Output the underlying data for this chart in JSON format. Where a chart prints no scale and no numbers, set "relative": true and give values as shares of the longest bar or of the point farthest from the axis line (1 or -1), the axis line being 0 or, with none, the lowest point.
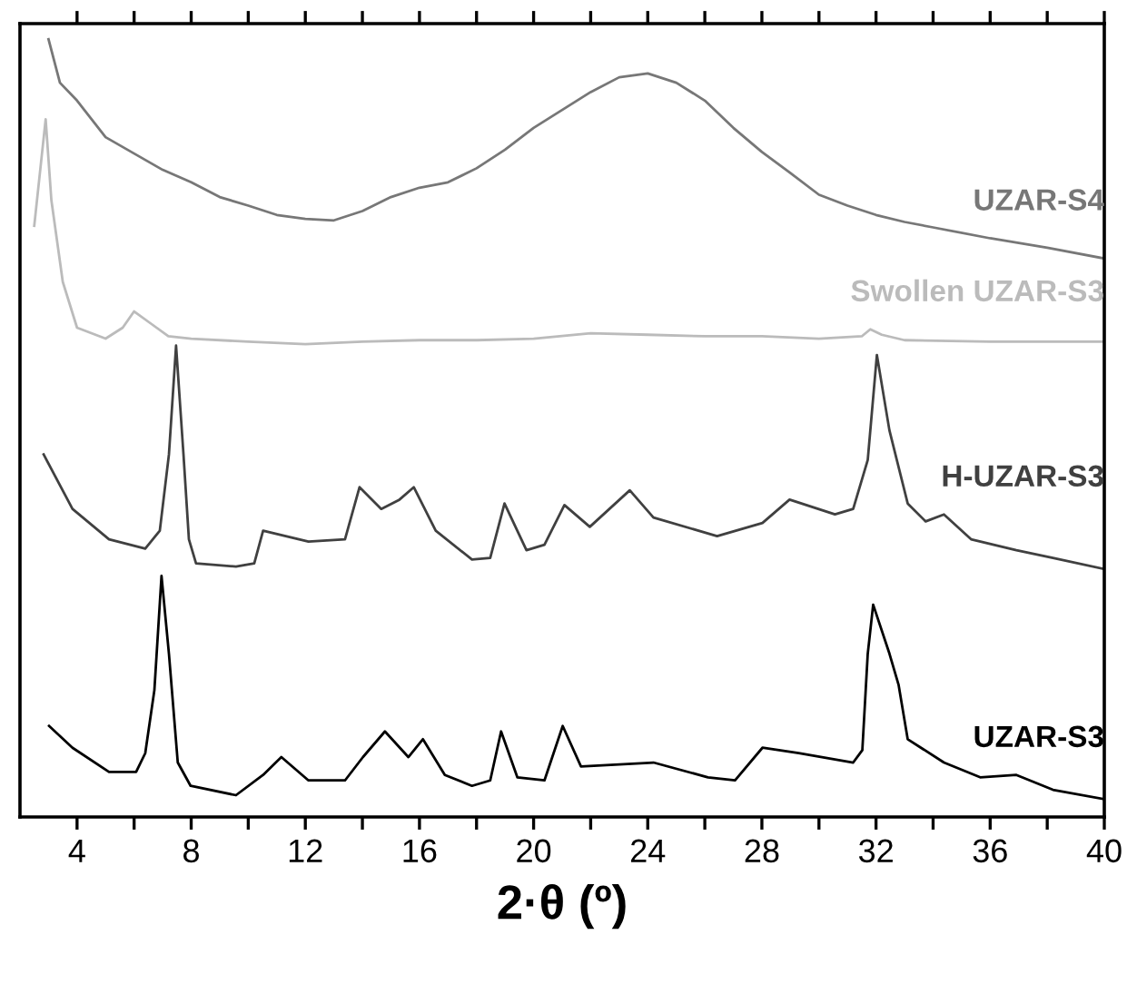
{
  "chart_data": {
    "type": "line",
    "relative": true,
    "xlabel": "2·θ (º)",
    "xlim": [
      2,
      40
    ],
    "xticks": [
      4,
      {
        "value": 6,
        "label": null
      },
      8,
      {
        "value": 10,
        "label": null
      },
      12,
      {
        "value": 14,
        "label": null
      },
      16,
      {
        "value": 18,
        "label": null
      },
      20,
      {
        "value": 22,
        "label": null
      },
      24,
      {
        "value": 26,
        "label": null
      },
      28,
      {
        "value": 30,
        "label": null
      },
      32,
      {
        "value": 34,
        "label": null
      },
      36,
      {
        "value": 38,
        "label": null
      },
      40
    ],
    "grid": false,
    "legend": false,
    "marker": "none",
    "line_style": "solid",
    "series": [
      {
        "name": "UZAR-S4",
        "color": "#777777",
        "x": [
          3.0,
          3.4,
          4,
          5,
          6,
          7,
          8,
          9,
          10,
          11,
          12,
          13,
          14,
          15,
          16,
          17,
          18,
          19,
          20,
          21,
          22,
          23,
          24,
          25,
          26,
          27,
          28,
          29,
          30,
          31,
          32,
          33,
          34,
          36,
          38,
          40
        ],
        "values": [
          1,
          0.944,
          0.921,
          0.874,
          0.853,
          0.832,
          0.816,
          0.797,
          0.786,
          0.774,
          0.769,
          0.767,
          0.779,
          0.797,
          0.809,
          0.816,
          0.834,
          0.858,
          0.886,
          0.909,
          0.932,
          0.951,
          0.956,
          0.944,
          0.921,
          0.886,
          0.855,
          0.828,
          0.8,
          0.786,
          0.774,
          0.765,
          0.758,
          0.744,
          0.732,
          0.718
        ]
      },
      {
        "name": "Swollen UZAR-S3",
        "color": "#bbbbbb",
        "x": [
          2.5,
          2.9,
          3.1,
          3.5,
          4,
          5,
          5.6,
          6.0,
          6.6,
          7.2,
          8,
          10,
          12,
          14,
          16,
          18,
          20,
          22,
          24,
          26,
          28,
          30,
          31.5,
          31.8,
          32.2,
          33,
          36,
          40
        ],
        "values": [
          0.76,
          0.897,
          0.793,
          0.688,
          0.629,
          0.615,
          0.629,
          0.65,
          0.634,
          0.618,
          0.615,
          0.611,
          0.608,
          0.611,
          0.613,
          0.613,
          0.615,
          0.622,
          0.62,
          0.618,
          0.618,
          0.615,
          0.618,
          0.627,
          0.62,
          0.613,
          0.611,
          0.611
        ]
      },
      {
        "name": "H-UZAR-S3",
        "color": "#404040",
        "x": [
          2.83,
          3.84,
          5.12,
          6.39,
          6.9,
          7.22,
          7.47,
          7.73,
          7.92,
          8.17,
          9.57,
          10.21,
          10.52,
          12.11,
          13.39,
          13.9,
          14.66,
          15.3,
          15.8,
          16.57,
          17.84,
          18.48,
          18.98,
          19.75,
          20.38,
          21.08,
          21.97,
          23.37,
          24.2,
          26.43,
          28.02,
          28.97,
          30.56,
          31.2,
          31.71,
          32.03,
          32.47,
          33.11,
          33.74,
          34.38,
          35.33,
          36.92,
          38.2,
          39.98
        ],
        "values": [
          0.466,
          0.396,
          0.357,
          0.345,
          0.368,
          0.466,
          0.606,
          0.466,
          0.357,
          0.326,
          0.322,
          0.326,
          0.368,
          0.354,
          0.357,
          0.424,
          0.396,
          0.408,
          0.424,
          0.368,
          0.331,
          0.333,
          0.403,
          0.343,
          0.35,
          0.401,
          0.373,
          0.42,
          0.385,
          0.361,
          0.378,
          0.408,
          0.389,
          0.396,
          0.459,
          0.594,
          0.497,
          0.403,
          0.38,
          0.389,
          0.357,
          0.343,
          0.333,
          0.319
        ]
      },
      {
        "name": "UZAR-S3",
        "color": "#000000",
        "x": [
          3.02,
          3.84,
          5.12,
          6.07,
          6.39,
          6.71,
          6.96,
          7.22,
          7.53,
          7.98,
          9.57,
          10.52,
          11.16,
          12.11,
          13.39,
          14.02,
          14.79,
          15.61,
          16.12,
          16.89,
          17.84,
          18.48,
          18.86,
          19.43,
          20.38,
          21.02,
          21.66,
          24.2,
          26.11,
          27.06,
          28.02,
          29.29,
          31.2,
          31.52,
          31.71,
          31.9,
          32.47,
          32.79,
          33.11,
          34.38,
          35.65,
          36.92,
          38.2,
          39.98
        ],
        "values": [
          0.117,
          0.089,
          0.058,
          0.058,
          0.082,
          0.163,
          0.31,
          0.21,
          0.07,
          0.04,
          0.028,
          0.054,
          0.077,
          0.047,
          0.047,
          0.077,
          0.11,
          0.077,
          0.1,
          0.054,
          0.04,
          0.047,
          0.11,
          0.051,
          0.047,
          0.117,
          0.065,
          0.07,
          0.051,
          0.047,
          0.089,
          0.082,
          0.07,
          0.086,
          0.21,
          0.273,
          0.21,
          0.17,
          0.1,
          0.07,
          0.051,
          0.054,
          0.035,
          0.023
        ]
      }
    ]
  }
}
